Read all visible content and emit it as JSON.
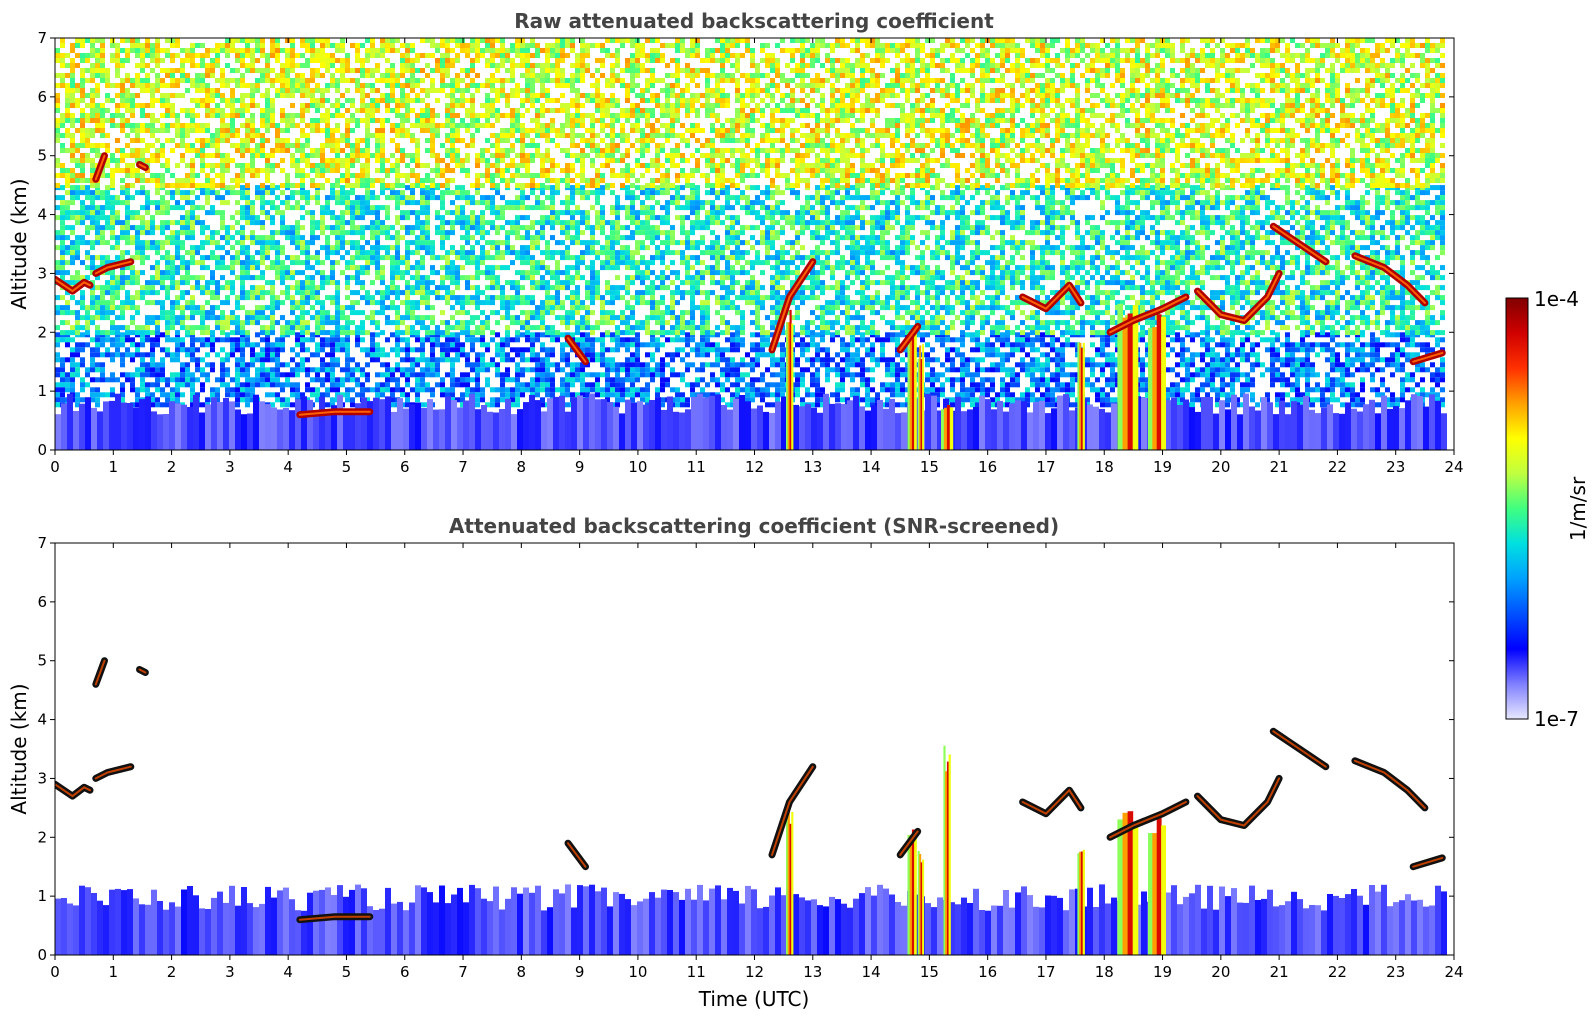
{
  "chart_data": [
    {
      "type": "heatmap",
      "title": "Raw attenuated backscattering coefficient",
      "xlabel": "",
      "ylabel": "Altitude (km)",
      "xlim": [
        0,
        24
      ],
      "ylim": [
        0,
        7
      ],
      "x_ticks": [
        "0",
        "1",
        "2",
        "3",
        "4",
        "5",
        "6",
        "7",
        "8",
        "9",
        "10",
        "11",
        "12",
        "13",
        "14",
        "15",
        "16",
        "17",
        "18",
        "19",
        "20",
        "21",
        "22",
        "23",
        "24"
      ],
      "y_ticks": [
        "0",
        "1",
        "2",
        "3",
        "4",
        "5",
        "6",
        "7"
      ],
      "data_end_time": 23.8,
      "features": [
        {
          "kind": "boundary_layer",
          "t0": 0,
          "t1": 23.8,
          "alt_top": 0.8,
          "level": 0.12
        },
        {
          "kind": "noise_band",
          "t0": 0,
          "t1": 23.8,
          "alt0": 0.8,
          "alt1": 2.0,
          "level": 0.3
        },
        {
          "kind": "noise_band",
          "t0": 0,
          "t1": 23.8,
          "alt0": 2.0,
          "alt1": 4.5,
          "level": 0.45
        },
        {
          "kind": "noise_band",
          "t0": 0,
          "t1": 23.8,
          "alt0": 4.5,
          "alt1": 7.0,
          "level": 0.62
        },
        {
          "kind": "cloud",
          "t": [
            0.0,
            0.3,
            0.5,
            0.6
          ],
          "alt": [
            2.9,
            2.7,
            2.85,
            2.8
          ]
        },
        {
          "kind": "cloud",
          "t": [
            0.7,
            0.9,
            1.3
          ],
          "alt": [
            3.0,
            3.1,
            3.2
          ]
        },
        {
          "kind": "cloud",
          "t": [
            0.7,
            0.85
          ],
          "alt": [
            4.6,
            5.0
          ]
        },
        {
          "kind": "cloud",
          "t": [
            1.45,
            1.55
          ],
          "alt": [
            4.85,
            4.8
          ]
        },
        {
          "kind": "cloud",
          "t": [
            4.2,
            4.8,
            5.4
          ],
          "alt": [
            0.6,
            0.65,
            0.65
          ]
        },
        {
          "kind": "cloud",
          "t": [
            8.8,
            9.1
          ],
          "alt": [
            1.9,
            1.5
          ]
        },
        {
          "kind": "cloud",
          "t": [
            12.3,
            12.6,
            13.0
          ],
          "alt": [
            1.7,
            2.6,
            3.2
          ]
        },
        {
          "kind": "cloud",
          "t": [
            14.5,
            14.8
          ],
          "alt": [
            1.7,
            2.1
          ]
        },
        {
          "kind": "cloud",
          "t": [
            16.6,
            17.0,
            17.4,
            17.6
          ],
          "alt": [
            2.6,
            2.4,
            2.8,
            2.5
          ]
        },
        {
          "kind": "cloud",
          "t": [
            18.1,
            18.5,
            19.0,
            19.4
          ],
          "alt": [
            2.0,
            2.2,
            2.4,
            2.6
          ]
        },
        {
          "kind": "cloud",
          "t": [
            19.6,
            20.0,
            20.4,
            20.8,
            21.0
          ],
          "alt": [
            2.7,
            2.3,
            2.2,
            2.6,
            3.0
          ]
        },
        {
          "kind": "cloud",
          "t": [
            20.9,
            21.2,
            21.5,
            21.8
          ],
          "alt": [
            3.8,
            3.6,
            3.4,
            3.2
          ]
        },
        {
          "kind": "cloud",
          "t": [
            22.3,
            22.8,
            23.2,
            23.5
          ],
          "alt": [
            3.3,
            3.1,
            2.8,
            2.5
          ]
        },
        {
          "kind": "cloud",
          "t": [
            23.3,
            23.8
          ],
          "alt": [
            1.5,
            1.65
          ]
        },
        {
          "kind": "precip",
          "t": 12.6,
          "top": 2.5,
          "width": 0.12
        },
        {
          "kind": "precip",
          "t": 14.7,
          "top": 2.2,
          "width": 0.15
        },
        {
          "kind": "precip",
          "t": 14.85,
          "top": 1.8,
          "width": 0.1
        },
        {
          "kind": "precip",
          "t": 15.3,
          "top": 0.8,
          "width": 0.2
        },
        {
          "kind": "precip",
          "t": 17.6,
          "top": 2.0,
          "width": 0.12
        },
        {
          "kind": "precip",
          "t": 18.4,
          "top": 2.6,
          "width": 0.35
        },
        {
          "kind": "precip",
          "t": 18.9,
          "top": 2.4,
          "width": 0.3
        }
      ]
    },
    {
      "type": "heatmap",
      "title": "Attenuated backscattering coefficient (SNR-screened)",
      "xlabel": "Time (UTC)",
      "ylabel": "Altitude (km)",
      "xlim": [
        0,
        24
      ],
      "ylim": [
        0,
        7
      ],
      "x_ticks": [
        "0",
        "1",
        "2",
        "3",
        "4",
        "5",
        "6",
        "7",
        "8",
        "9",
        "10",
        "11",
        "12",
        "13",
        "14",
        "15",
        "16",
        "17",
        "18",
        "19",
        "20",
        "21",
        "22",
        "23",
        "24"
      ],
      "y_ticks": [
        "0",
        "1",
        "2",
        "3",
        "4",
        "5",
        "6",
        "7"
      ],
      "data_end_time": 23.8,
      "features": [
        {
          "kind": "boundary_layer",
          "t0": 0,
          "t1": 23.8,
          "alt_top": 1.0,
          "level": 0.12
        },
        {
          "kind": "cloud",
          "t": [
            0.0,
            0.3,
            0.5,
            0.6
          ],
          "alt": [
            2.9,
            2.7,
            2.85,
            2.8
          ]
        },
        {
          "kind": "cloud",
          "t": [
            0.7,
            0.9,
            1.3
          ],
          "alt": [
            3.0,
            3.1,
            3.2
          ]
        },
        {
          "kind": "cloud",
          "t": [
            0.7,
            0.85
          ],
          "alt": [
            4.6,
            5.0
          ]
        },
        {
          "kind": "cloud",
          "t": [
            1.45,
            1.55
          ],
          "alt": [
            4.85,
            4.8
          ]
        },
        {
          "kind": "cloud",
          "t": [
            4.2,
            4.8,
            5.4
          ],
          "alt": [
            0.6,
            0.65,
            0.65
          ]
        },
        {
          "kind": "cloud",
          "t": [
            8.8,
            9.1
          ],
          "alt": [
            1.9,
            1.5
          ]
        },
        {
          "kind": "cloud",
          "t": [
            12.3,
            12.6,
            13.0
          ],
          "alt": [
            1.7,
            2.6,
            3.2
          ]
        },
        {
          "kind": "cloud",
          "t": [
            14.5,
            14.8
          ],
          "alt": [
            1.7,
            2.1
          ]
        },
        {
          "kind": "cloud",
          "t": [
            16.6,
            17.0,
            17.4,
            17.6
          ],
          "alt": [
            2.6,
            2.4,
            2.8,
            2.5
          ]
        },
        {
          "kind": "cloud",
          "t": [
            18.1,
            18.5,
            19.0,
            19.4
          ],
          "alt": [
            2.0,
            2.2,
            2.4,
            2.6
          ]
        },
        {
          "kind": "cloud",
          "t": [
            19.6,
            20.0,
            20.4,
            20.8,
            21.0
          ],
          "alt": [
            2.7,
            2.3,
            2.2,
            2.6,
            3.0
          ]
        },
        {
          "kind": "cloud",
          "t": [
            20.9,
            21.2,
            21.5,
            21.8
          ],
          "alt": [
            3.8,
            3.6,
            3.4,
            3.2
          ]
        },
        {
          "kind": "cloud",
          "t": [
            22.3,
            22.8,
            23.2,
            23.5
          ],
          "alt": [
            3.3,
            3.1,
            2.8,
            2.5
          ]
        },
        {
          "kind": "cloud",
          "t": [
            23.3,
            23.8
          ],
          "alt": [
            1.5,
            1.65
          ]
        },
        {
          "kind": "precip",
          "t": 12.6,
          "top": 2.5,
          "width": 0.12
        },
        {
          "kind": "precip",
          "t": 14.7,
          "top": 2.2,
          "width": 0.15
        },
        {
          "kind": "precip",
          "t": 14.85,
          "top": 1.8,
          "width": 0.1
        },
        {
          "kind": "precip",
          "t": 15.3,
          "top": 3.6,
          "width": 0.12
        },
        {
          "kind": "precip",
          "t": 17.6,
          "top": 2.0,
          "width": 0.12
        },
        {
          "kind": "precip",
          "t": 18.4,
          "top": 2.6,
          "width": 0.35
        },
        {
          "kind": "precip",
          "t": 18.9,
          "top": 2.4,
          "width": 0.3
        }
      ]
    }
  ],
  "colorbar": {
    "label": "1/m/sr",
    "max_label": "1e-4",
    "min_label": "1e-7",
    "colors": [
      "#e8e8ff",
      "#7f7fff",
      "#0000ff",
      "#0050ff",
      "#00a0ff",
      "#00e0e0",
      "#40ff80",
      "#c0ff40",
      "#ffff00",
      "#ffa000",
      "#ff3000",
      "#d00000",
      "#800000"
    ]
  }
}
